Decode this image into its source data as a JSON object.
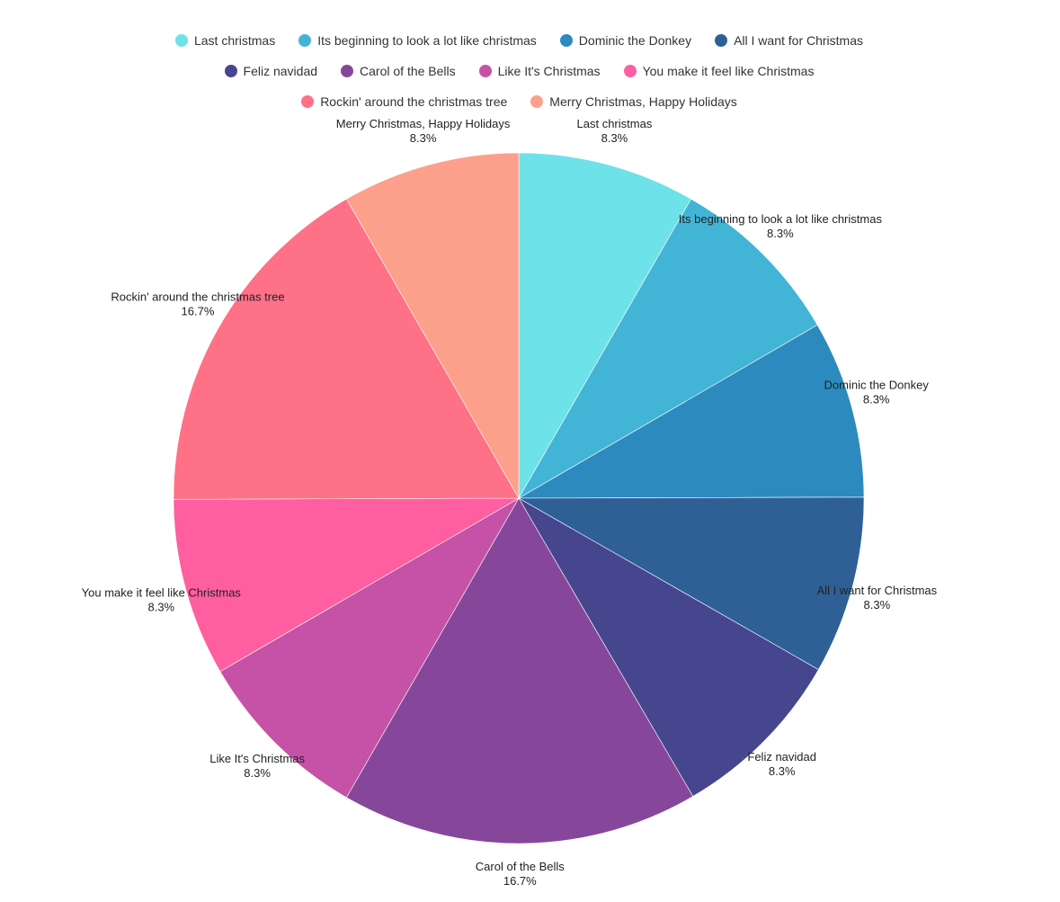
{
  "chart_data": {
    "type": "pie",
    "legend_position": "top",
    "slices": [
      {
        "label": "Last christmas",
        "value": 8.3,
        "pct_label": "8.3%",
        "color": "#6de2e8"
      },
      {
        "label": "Its beginning to look a lot like christmas",
        "value": 8.3,
        "pct_label": "8.3%",
        "color": "#42b5d6"
      },
      {
        "label": "Dominic the Donkey",
        "value": 8.3,
        "pct_label": "8.3%",
        "color": "#2d8abe"
      },
      {
        "label": "All I want for Christmas",
        "value": 8.3,
        "pct_label": "8.3%",
        "color": "#2e6096"
      },
      {
        "label": "Feliz navidad",
        "value": 8.3,
        "pct_label": "8.3%",
        "color": "#46468f"
      },
      {
        "label": "Carol of the Bells",
        "value": 16.7,
        "pct_label": "16.7%",
        "color": "#86479b"
      },
      {
        "label": "Like It's Christmas",
        "value": 8.3,
        "pct_label": "8.3%",
        "color": "#c552a7"
      },
      {
        "label": "You make it feel like Christmas",
        "value": 8.3,
        "pct_label": "8.3%",
        "color": "#ff5ea0"
      },
      {
        "label": "Rockin' around the christmas tree",
        "value": 16.7,
        "pct_label": "16.7%",
        "color": "#ff7187"
      },
      {
        "label": "Merry Christmas, Happy Holidays",
        "value": 8.3,
        "pct_label": "8.3%",
        "color": "#fca08c"
      }
    ]
  }
}
